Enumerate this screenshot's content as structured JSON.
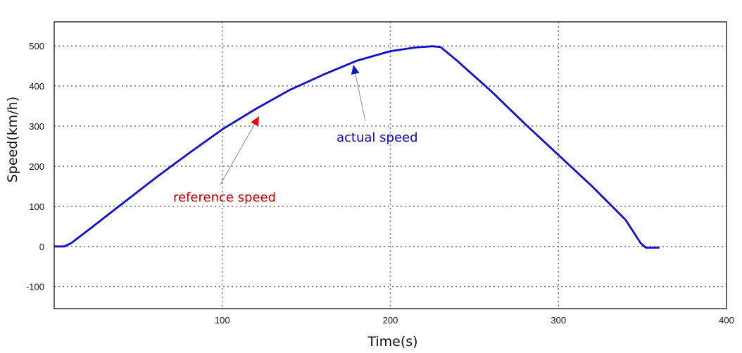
{
  "colors": {
    "actual": "#1010d0",
    "reference": "#ee0000",
    "reference_label": "#c00000",
    "actual_label": "#0a0ab4",
    "grid": "#777777",
    "leader": "#8a8a8a"
  },
  "chart_data": {
    "type": "line",
    "title": "",
    "xlabel": "Time(s)",
    "ylabel": "Speed(km/h)",
    "xlim": [
      0,
      400
    ],
    "ylim": [
      -155,
      560
    ],
    "xticks": [
      100,
      200,
      300,
      400
    ],
    "yticks": [
      -100,
      0,
      100,
      200,
      300,
      400,
      500
    ],
    "grid": true,
    "series": [
      {
        "name": "actual speed",
        "x": [
          0,
          6,
          10,
          20,
          40,
          60,
          80,
          100,
          120,
          140,
          160,
          180,
          200,
          215,
          225,
          230,
          240,
          260,
          280,
          300,
          320,
          340,
          349,
          352,
          360
        ],
        "y": [
          0,
          0,
          8,
          40,
          105,
          170,
          232,
          292,
          343,
          390,
          428,
          463,
          487,
          496,
          499,
          497,
          462,
          387,
          306,
          228,
          150,
          66,
          8,
          -3,
          -3
        ]
      },
      {
        "name": "reference speed",
        "x": [
          0,
          6,
          10,
          20,
          40,
          60,
          80,
          100,
          120,
          140,
          160,
          180,
          200,
          215,
          225,
          230,
          240,
          260,
          280,
          300,
          320,
          340,
          349,
          352,
          360
        ],
        "y": [
          0,
          0,
          8,
          40,
          105,
          170,
          232,
          292,
          343,
          390,
          428,
          463,
          487,
          496,
          499,
          497,
          462,
          387,
          306,
          228,
          150,
          66,
          8,
          -3,
          -3
        ]
      }
    ],
    "annotations": [
      {
        "text": "reference speed",
        "target_x": 122,
        "target_y": 330
      },
      {
        "text": "actual speed",
        "target_x": 178,
        "target_y": 460
      }
    ]
  }
}
